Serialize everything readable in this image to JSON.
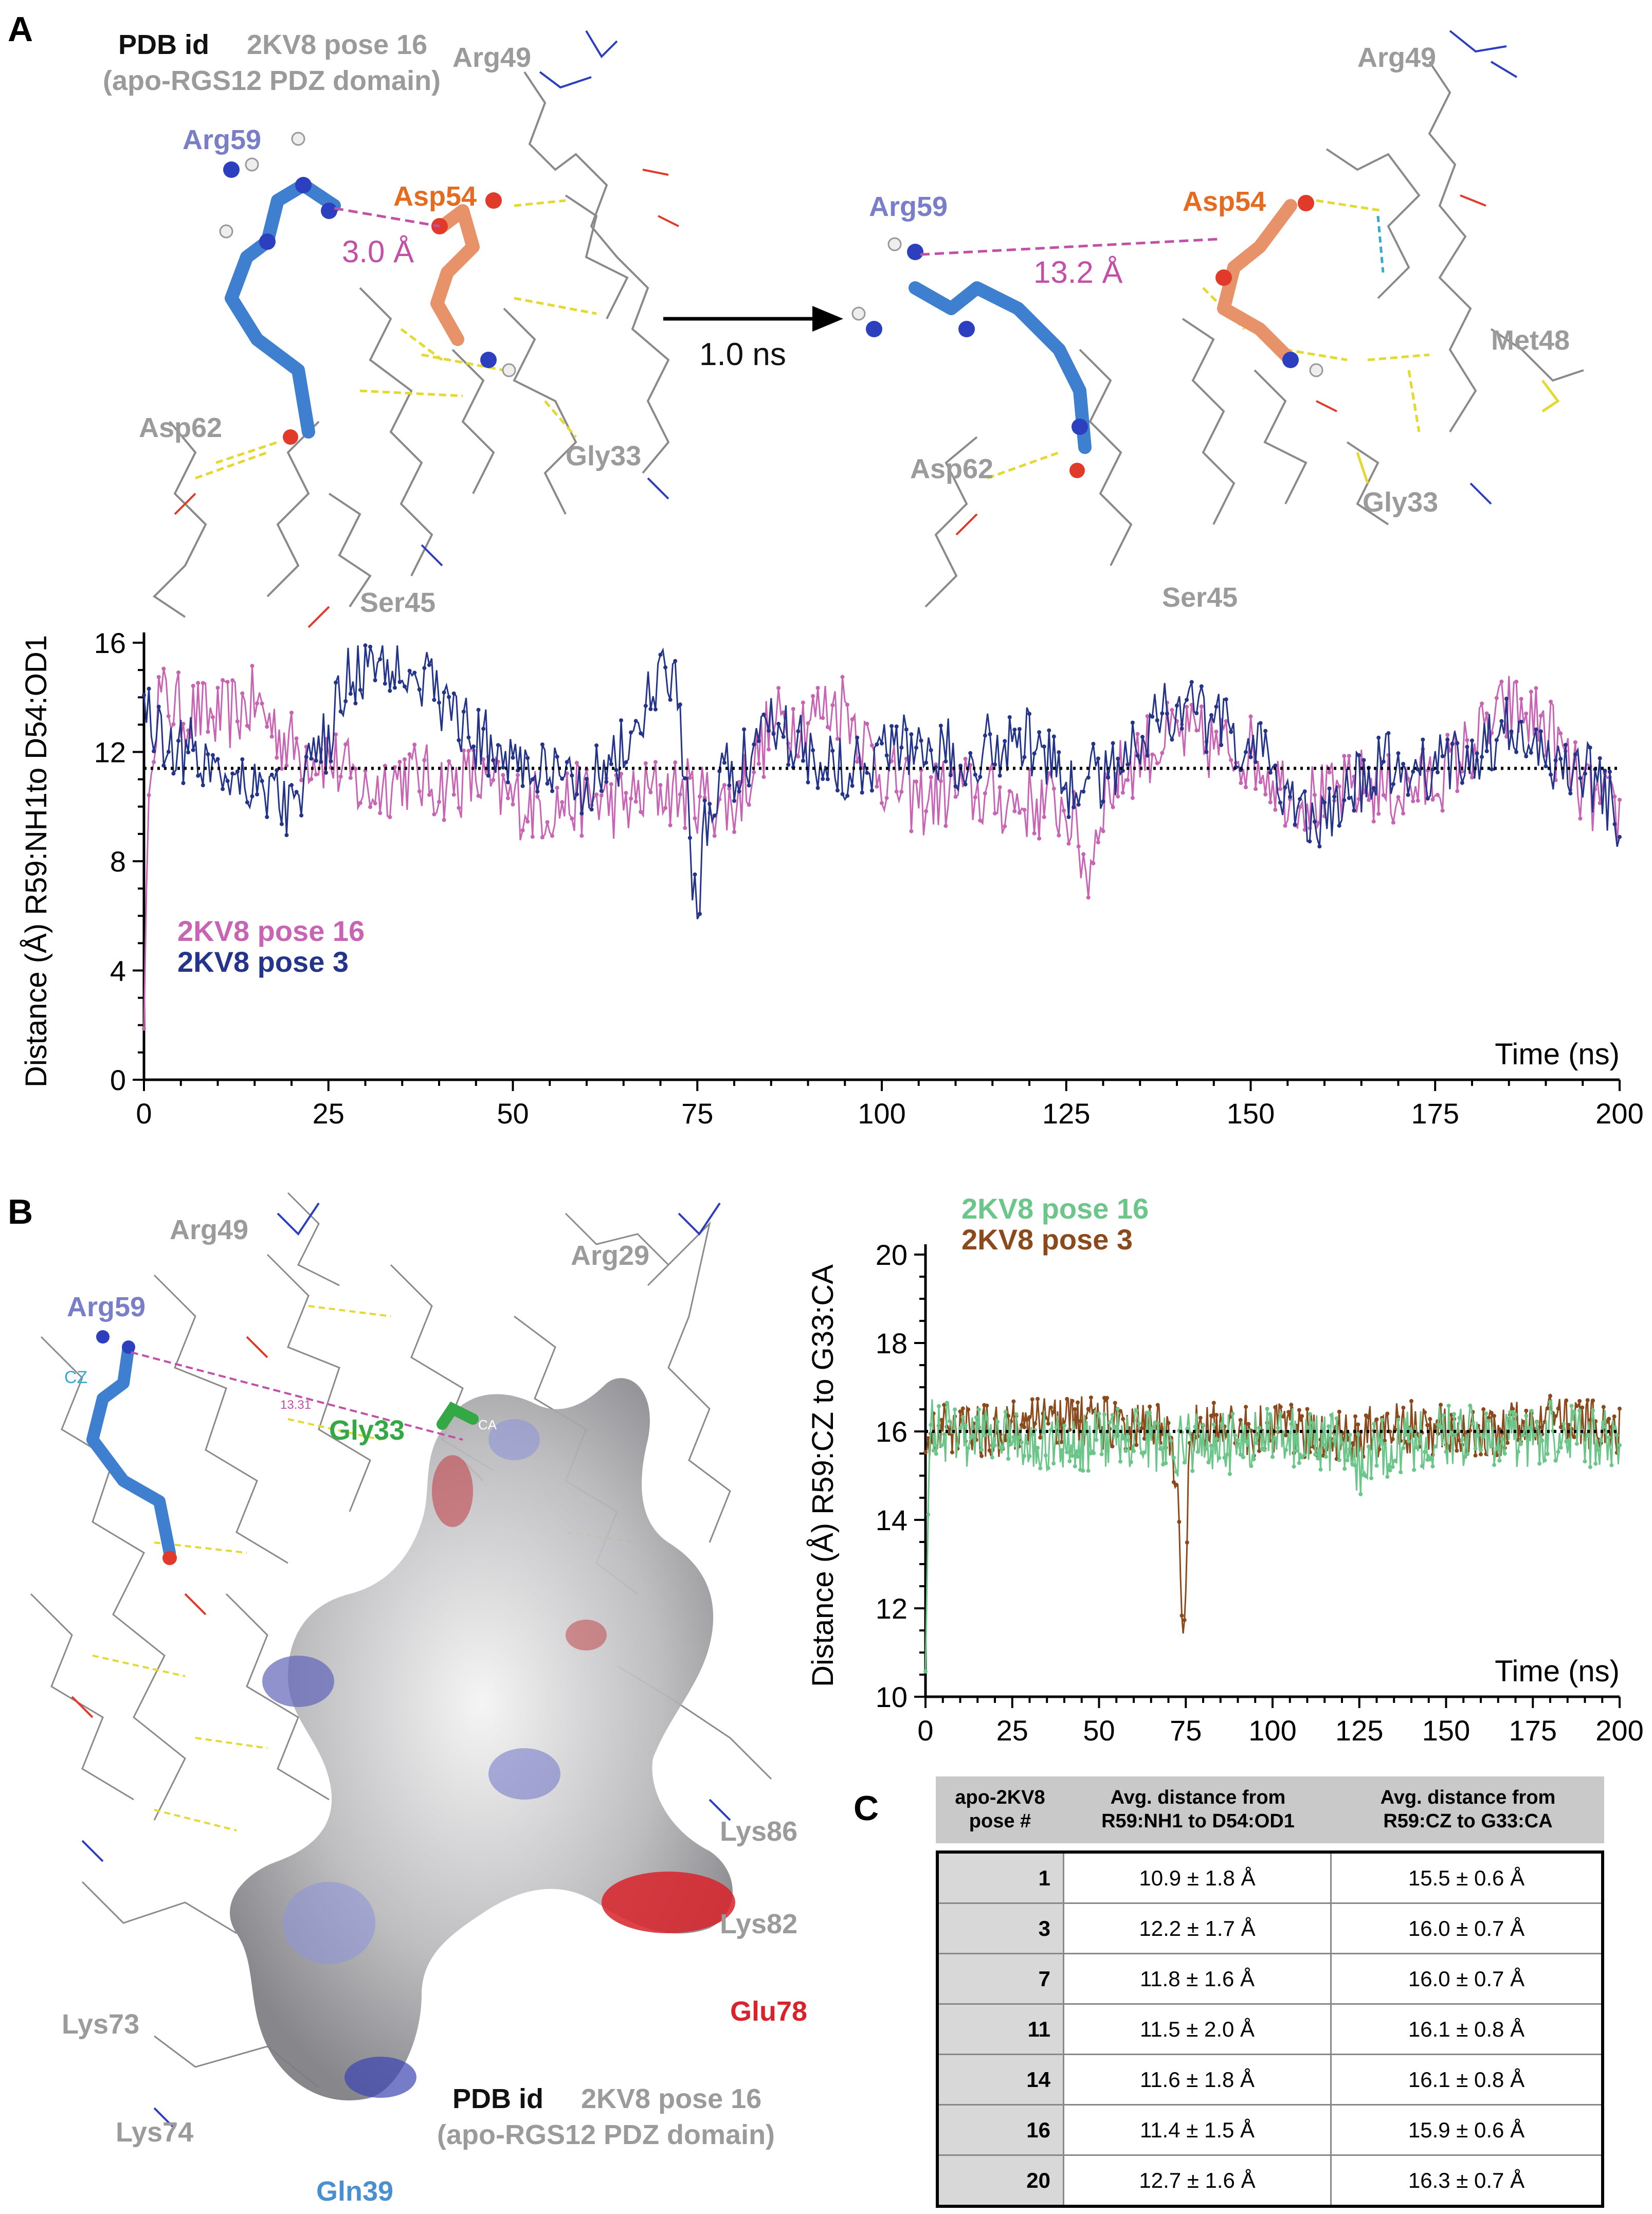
{
  "panels": {
    "a": "A",
    "b": "B",
    "c": "C"
  },
  "panel_a": {
    "pdb_id_label": "PDB id",
    "pdb_id_value": "2KV8 pose 16",
    "pdb_subtitle": "(apo-RGS12 PDZ domain)",
    "arrow_label": "1.0 ns",
    "left": {
      "residues": {
        "arg59": "Arg59",
        "asp54": "Asp54",
        "arg49": "Arg49",
        "asp62": "Asp62",
        "gly33": "Gly33",
        "ser45": "Ser45"
      },
      "distance": "3.0 Å"
    },
    "right": {
      "residues": {
        "arg59": "Arg59",
        "asp54": "Asp54",
        "arg49": "Arg49",
        "asp62": "Asp62",
        "gly33": "Gly33",
        "ser45": "Ser45",
        "met48": "Met48"
      },
      "distance": "13.2 Å"
    }
  },
  "panel_b": {
    "residues": {
      "arg49": "Arg49",
      "arg29": "Arg29",
      "arg59": "Arg59",
      "gly33": "Gly33",
      "lys86": "Lys86",
      "lys82": "Lys82",
      "lys73": "Lys73",
      "lys74": "Lys74",
      "gln39": "Gln39",
      "glu78": "Glu78",
      "cz": "CZ",
      "ca": "CA",
      "dist": "13.31"
    },
    "pdb_id_label": "PDB id",
    "pdb_id_value": "2KV8 pose 16",
    "pdb_subtitle": "(apo-RGS12 PDZ domain)"
  },
  "chart_data": [
    {
      "type": "line",
      "ylabel": "Distance (Å) R59:NH1to D54:OD1",
      "xlabel": "Time (ns)",
      "xlim": [
        0,
        200
      ],
      "ylim": [
        0,
        16
      ],
      "xticks": [
        0,
        25,
        50,
        75,
        100,
        125,
        150,
        175,
        200
      ],
      "yticks": [
        0,
        4,
        8,
        12,
        16
      ],
      "reference_line": 11.4,
      "colors": {
        "pose16": "#c764b4",
        "pose3": "#243489"
      },
      "series": [
        {
          "name": "2KV8 pose 16",
          "x": [
            0,
            0.5,
            1,
            2,
            5,
            10,
            15,
            20,
            25,
            30,
            35,
            40,
            45,
            50,
            55,
            60,
            65,
            70,
            75,
            80,
            85,
            90,
            95,
            100,
            105,
            110,
            115,
            120,
            125,
            128,
            130,
            135,
            140,
            145,
            150,
            155,
            160,
            165,
            170,
            175,
            180,
            185,
            190,
            195,
            200
          ],
          "y": [
            3.0,
            7.5,
            12.5,
            14.0,
            13.5,
            13.2,
            13.8,
            12.2,
            11.8,
            10.5,
            11.2,
            10.8,
            11.0,
            10.2,
            10.0,
            10.3,
            10.1,
            10.6,
            10.4,
            10.0,
            13.0,
            13.3,
            13.8,
            11.2,
            10.2,
            10.6,
            10.3,
            10.1,
            10.0,
            7.5,
            10.4,
            12.0,
            12.6,
            12.2,
            12.0,
            10.6,
            10.2,
            10.8,
            10.5,
            11.0,
            12.2,
            13.6,
            13.0,
            10.5,
            9.6
          ]
        },
        {
          "name": "2KV8 pose 3",
          "x": [
            0,
            2,
            5,
            10,
            15,
            20,
            25,
            28,
            32,
            36,
            40,
            45,
            50,
            55,
            60,
            65,
            70,
            72,
            74,
            75,
            76,
            78,
            80,
            85,
            90,
            95,
            100,
            105,
            110,
            115,
            120,
            125,
            130,
            135,
            140,
            145,
            150,
            155,
            160,
            165,
            170,
            175,
            180,
            185,
            190,
            195,
            200
          ],
          "y": [
            14.0,
            12.6,
            12.2,
            11.5,
            11.0,
            10.0,
            12.5,
            15.0,
            15.2,
            15.4,
            14.0,
            12.5,
            11.8,
            11.0,
            10.9,
            12.0,
            14.6,
            14.8,
            9.0,
            5.0,
            9.0,
            11.2,
            11.0,
            13.5,
            12.0,
            11.5,
            12.0,
            12.5,
            11.8,
            12.3,
            12.5,
            10.8,
            11.2,
            12.6,
            13.8,
            13.0,
            12.2,
            10.6,
            9.2,
            11.0,
            11.6,
            11.4,
            12.0,
            12.8,
            11.6,
            11.5,
            9.6
          ]
        }
      ]
    },
    {
      "type": "line",
      "ylabel": "Distance (Å) R59:CZ to G33:CA",
      "xlabel": "Time (ns)",
      "xlim": [
        0,
        200
      ],
      "ylim": [
        10,
        20
      ],
      "xticks": [
        0,
        25,
        50,
        75,
        100,
        125,
        150,
        175,
        200
      ],
      "yticks": [
        10,
        12,
        14,
        16,
        18,
        20
      ],
      "reference_line": 16.0,
      "colors": {
        "pose16": "#6cc689",
        "pose3": "#8b4a1c"
      },
      "series": [
        {
          "name": "2KV8 pose 16",
          "x": [
            0,
            0.5,
            1,
            2,
            10,
            20,
            30,
            40,
            50,
            60,
            70,
            80,
            90,
            100,
            110,
            120,
            125,
            130,
            140,
            150,
            160,
            170,
            180,
            190,
            200
          ],
          "y": [
            11.0,
            13.0,
            15.5,
            16.2,
            15.8,
            16.0,
            15.9,
            15.7,
            15.8,
            15.9,
            15.6,
            15.8,
            15.7,
            15.9,
            15.8,
            15.7,
            15.2,
            15.6,
            15.8,
            15.9,
            15.9,
            15.8,
            16.0,
            15.9,
            15.7
          ]
        },
        {
          "name": "2KV8 pose 3",
          "x": [
            0,
            10,
            20,
            30,
            40,
            50,
            60,
            70,
            73,
            74,
            75,
            76,
            78,
            80,
            90,
            100,
            110,
            120,
            130,
            140,
            150,
            160,
            170,
            180,
            190,
            200
          ],
          "y": [
            16.0,
            16.1,
            16.0,
            16.2,
            16.3,
            16.2,
            16.1,
            16.0,
            14.5,
            11.0,
            12.0,
            15.5,
            16.0,
            16.1,
            16.0,
            16.1,
            16.0,
            15.9,
            16.0,
            16.1,
            16.0,
            15.9,
            16.1,
            16.3,
            16.2,
            16.0
          ]
        }
      ]
    },
    {
      "type": "table",
      "headers": [
        "apo-2KV8 pose #",
        "Avg. distance from R59:NH1 to D54:OD1",
        "Avg. distance from R59:CZ to G33:CA"
      ],
      "rows": [
        [
          "1",
          "10.9 ± 1.8 Å",
          "15.5 ± 0.6 Å"
        ],
        [
          "3",
          "12.2 ± 1.7 Å",
          "16.0 ± 0.7 Å"
        ],
        [
          "7",
          "11.8 ± 1.6 Å",
          "16.0 ± 0.7 Å"
        ],
        [
          "11",
          "11.5 ± 2.0 Å",
          "16.1 ± 0.8 Å"
        ],
        [
          "14",
          "11.6 ± 1.8 Å",
          "16.1 ± 0.8 Å"
        ],
        [
          "16",
          "11.4 ± 1.5 Å",
          "15.9 ± 0.6 Å"
        ],
        [
          "20",
          "12.7 ± 1.6 Å",
          "16.3 ± 0.7 Å"
        ]
      ]
    }
  ],
  "table_header_lines": {
    "h0a": "apo-2KV8",
    "h0b": "pose #",
    "h1a": "Avg. distance from",
    "h1b": "R59:NH1 to D54:OD1",
    "h2a": "Avg. distance from",
    "h2b": "R59:CZ to G33:CA"
  }
}
